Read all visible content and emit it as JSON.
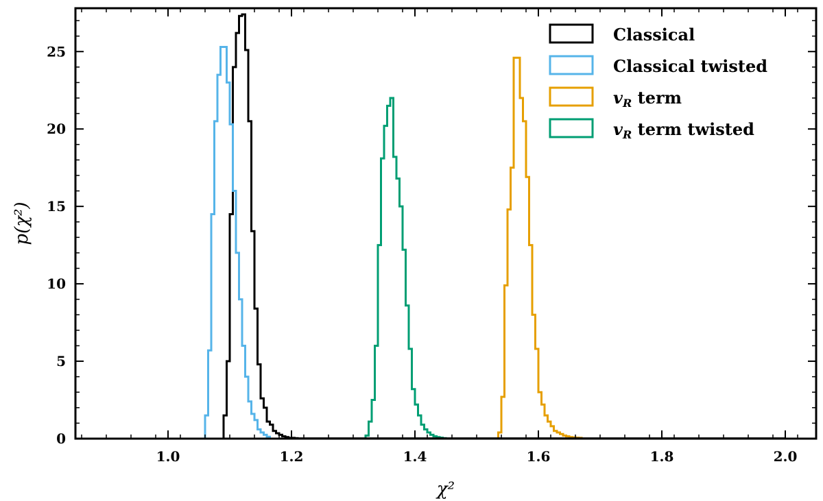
{
  "chart_data": {
    "type": "histogram",
    "xlabel": "χ²",
    "ylabel": "p(χ²)",
    "xlim": [
      0.85,
      2.05
    ],
    "ylim": [
      0,
      27.8
    ],
    "x_ticks": [
      1.0,
      1.2,
      1.4,
      1.6,
      1.8,
      2.0
    ],
    "x_tick_labels": [
      "1.0",
      "1.2",
      "1.4",
      "1.6",
      "1.8",
      "2.0"
    ],
    "y_ticks": [
      0,
      5,
      10,
      15,
      20,
      25
    ],
    "y_tick_labels": [
      "0",
      "5",
      "10",
      "15",
      "20",
      "25"
    ],
    "legend_position": "top-right",
    "histtype": "step",
    "series": [
      {
        "name": "Classical",
        "color": "#000000",
        "bins": [
          1.09,
          1.095,
          1.1,
          1.105,
          1.11,
          1.115,
          1.12,
          1.125,
          1.13,
          1.135,
          1.14,
          1.145,
          1.15,
          1.155,
          1.16,
          1.165,
          1.17,
          1.175,
          1.18,
          1.185,
          1.19,
          1.195,
          1.2,
          1.205,
          1.21
        ],
        "values": [
          1.5,
          5.0,
          14.5,
          24.0,
          26.2,
          27.3,
          27.4,
          25.1,
          20.5,
          13.4,
          8.4,
          4.8,
          2.6,
          2.0,
          1.1,
          0.9,
          0.5,
          0.35,
          0.25,
          0.15,
          0.1,
          0.05,
          0.05,
          0.03
        ]
      },
      {
        "name": "Classical twisted",
        "color": "#56b4e9",
        "bins": [
          1.06,
          1.065,
          1.07,
          1.075,
          1.08,
          1.085,
          1.09,
          1.095,
          1.1,
          1.105,
          1.11,
          1.115,
          1.12,
          1.125,
          1.13,
          1.135,
          1.14,
          1.145,
          1.15,
          1.155,
          1.16,
          1.165
        ],
        "values": [
          1.5,
          5.7,
          14.5,
          20.5,
          23.5,
          25.3,
          25.3,
          23.0,
          20.3,
          16.0,
          12.0,
          9.0,
          6.0,
          4.0,
          2.4,
          1.6,
          1.2,
          0.6,
          0.4,
          0.25,
          0.12
        ]
      },
      {
        "name": "v_R term",
        "color": "#e69f00",
        "bins": [
          1.535,
          1.54,
          1.545,
          1.55,
          1.555,
          1.56,
          1.565,
          1.57,
          1.575,
          1.58,
          1.585,
          1.59,
          1.595,
          1.6,
          1.605,
          1.61,
          1.615,
          1.62,
          1.625,
          1.63,
          1.635,
          1.64,
          1.645,
          1.65,
          1.655,
          1.66,
          1.665,
          1.67
        ],
        "values": [
          0.4,
          2.7,
          9.9,
          14.8,
          17.5,
          24.6,
          24.6,
          22.0,
          20.5,
          16.9,
          12.5,
          8.0,
          5.8,
          3.0,
          2.2,
          1.5,
          1.1,
          0.8,
          0.5,
          0.4,
          0.3,
          0.2,
          0.15,
          0.1,
          0.08,
          0.06,
          0.05
        ]
      },
      {
        "name": "v_R term twisted",
        "color": "#009e73",
        "bins": [
          1.32,
          1.325,
          1.33,
          1.335,
          1.34,
          1.345,
          1.35,
          1.355,
          1.36,
          1.365,
          1.37,
          1.375,
          1.38,
          1.385,
          1.39,
          1.395,
          1.4,
          1.405,
          1.41,
          1.415,
          1.42,
          1.425,
          1.43,
          1.435,
          1.44,
          1.445,
          1.45
        ],
        "values": [
          0.2,
          1.1,
          2.5,
          6.0,
          12.5,
          18.1,
          20.2,
          21.5,
          22.0,
          18.2,
          16.8,
          15.0,
          12.2,
          8.6,
          5.8,
          3.2,
          2.2,
          1.5,
          0.9,
          0.6,
          0.4,
          0.25,
          0.15,
          0.1,
          0.06,
          0.03
        ]
      }
    ],
    "legend": [
      {
        "label": "Classical"
      },
      {
        "label": "Classical twisted"
      },
      {
        "label": "term",
        "math": "v",
        "sub": "R"
      },
      {
        "label": "term twisted",
        "math": "v",
        "sub": "R"
      }
    ]
  }
}
